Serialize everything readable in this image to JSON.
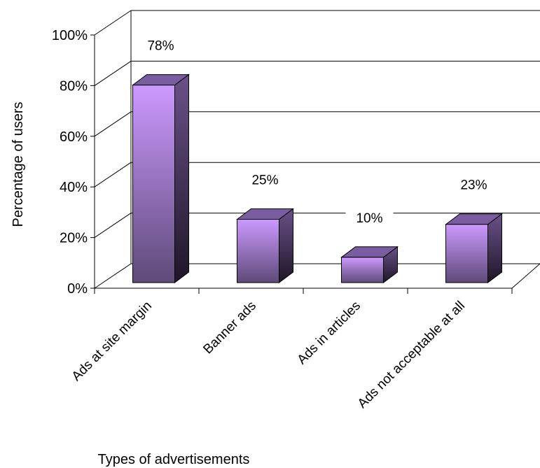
{
  "chart_data": {
    "type": "bar",
    "categories": [
      "Ads at site margin",
      "Banner ads",
      "Ads in articles",
      "Ads not acceptable at all"
    ],
    "values": [
      78,
      25,
      10,
      23
    ],
    "value_labels": [
      "78%",
      "25%",
      "10%",
      "23%"
    ],
    "xlabel": "Types of advertisements",
    "ylabel": "Percentage of users",
    "ylim": [
      0,
      100
    ],
    "yticks": [
      0,
      20,
      40,
      60,
      80,
      100
    ],
    "ytick_labels": [
      "0%",
      "20%",
      "40%",
      "60%",
      "80%",
      "100%"
    ],
    "grid": true,
    "legend": "none",
    "style": "3d-column",
    "colors": {
      "bar_front_top": "#cc99ff",
      "bar_front_bottom": "#5e4a78",
      "bar_side": "#4a3a60",
      "bar_top": "#7a5ca0",
      "grid": "#000000"
    }
  }
}
